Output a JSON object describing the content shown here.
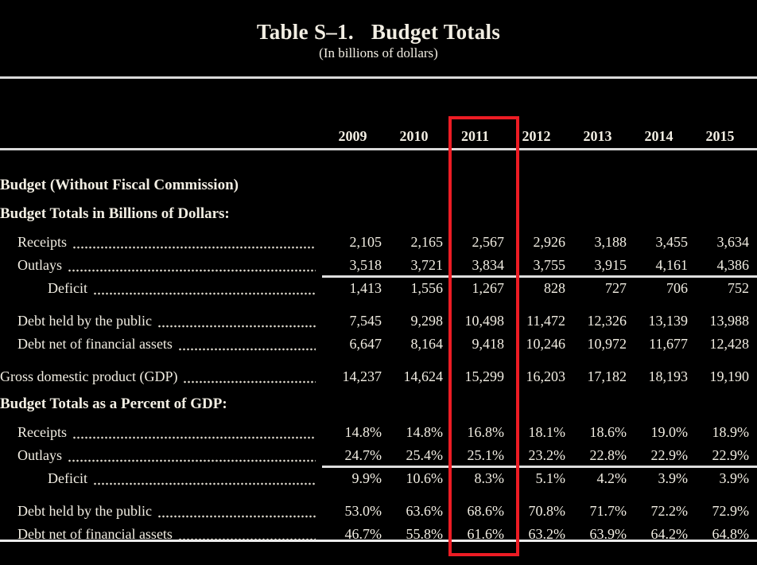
{
  "title": {
    "table_number": "Table S–1.",
    "table_name": "Budget Totals",
    "subtitle": "(In billions of dollars)"
  },
  "highlight": {
    "year": "2011",
    "color": "#ed1c24"
  },
  "table": {
    "columns": [
      "2009",
      "2010",
      "2011",
      "2012",
      "2013",
      "2014",
      "2015"
    ],
    "rows": [
      {
        "kind": "heading",
        "label": "Budget (Without Fiscal Commission)"
      },
      {
        "kind": "heading",
        "label": "Budget Totals in Billions of Dollars:"
      },
      {
        "kind": "data",
        "label": "Receipts",
        "indent": 1,
        "values": [
          "2,105",
          "2,165",
          "2,567",
          "2,926",
          "3,188",
          "3,455",
          "3,634"
        ]
      },
      {
        "kind": "data",
        "label": "Outlays",
        "indent": 1,
        "rule_after": true,
        "values": [
          "3,518",
          "3,721",
          "3,834",
          "3,755",
          "3,915",
          "4,161",
          "4,386"
        ]
      },
      {
        "kind": "data",
        "label": "Deficit",
        "indent": 2,
        "values": [
          "1,413",
          "1,556",
          "1,267",
          "828",
          "727",
          "706",
          "752"
        ]
      },
      {
        "kind": "data",
        "label": "Debt held by the public",
        "indent": 1,
        "gap_before": true,
        "values": [
          "7,545",
          "9,298",
          "10,498",
          "11,472",
          "12,326",
          "13,139",
          "13,988"
        ]
      },
      {
        "kind": "data",
        "label": "Debt net of financial assets",
        "indent": 1,
        "values": [
          "6,647",
          "8,164",
          "9,418",
          "10,246",
          "10,972",
          "11,677",
          "12,428"
        ]
      },
      {
        "kind": "data",
        "label": "Gross domestic product (GDP)",
        "indent": 0,
        "gap_before": true,
        "values": [
          "14,237",
          "14,624",
          "15,299",
          "16,203",
          "17,182",
          "18,193",
          "19,190"
        ]
      },
      {
        "kind": "heading",
        "label": "Budget Totals as a Percent of GDP:"
      },
      {
        "kind": "data",
        "label": "Receipts",
        "indent": 1,
        "values": [
          "14.8%",
          "14.8%",
          "16.8%",
          "18.1%",
          "18.6%",
          "19.0%",
          "18.9%"
        ]
      },
      {
        "kind": "data",
        "label": "Outlays",
        "indent": 1,
        "rule_after": true,
        "values": [
          "24.7%",
          "25.4%",
          "25.1%",
          "23.2%",
          "22.8%",
          "22.9%",
          "22.9%"
        ]
      },
      {
        "kind": "data",
        "label": "Deficit",
        "indent": 2,
        "values": [
          "9.9%",
          "10.6%",
          "8.3%",
          "5.1%",
          "4.2%",
          "3.9%",
          "3.9%"
        ]
      },
      {
        "kind": "data",
        "label": "Debt held by the public",
        "indent": 1,
        "gap_before": true,
        "values": [
          "53.0%",
          "63.6%",
          "68.6%",
          "70.8%",
          "71.7%",
          "72.2%",
          "72.9%"
        ]
      },
      {
        "kind": "data",
        "label": "Debt net of financial assets",
        "indent": 1,
        "values": [
          "46.7%",
          "55.8%",
          "61.6%",
          "63.2%",
          "63.9%",
          "64.2%",
          "64.8%"
        ]
      }
    ]
  }
}
